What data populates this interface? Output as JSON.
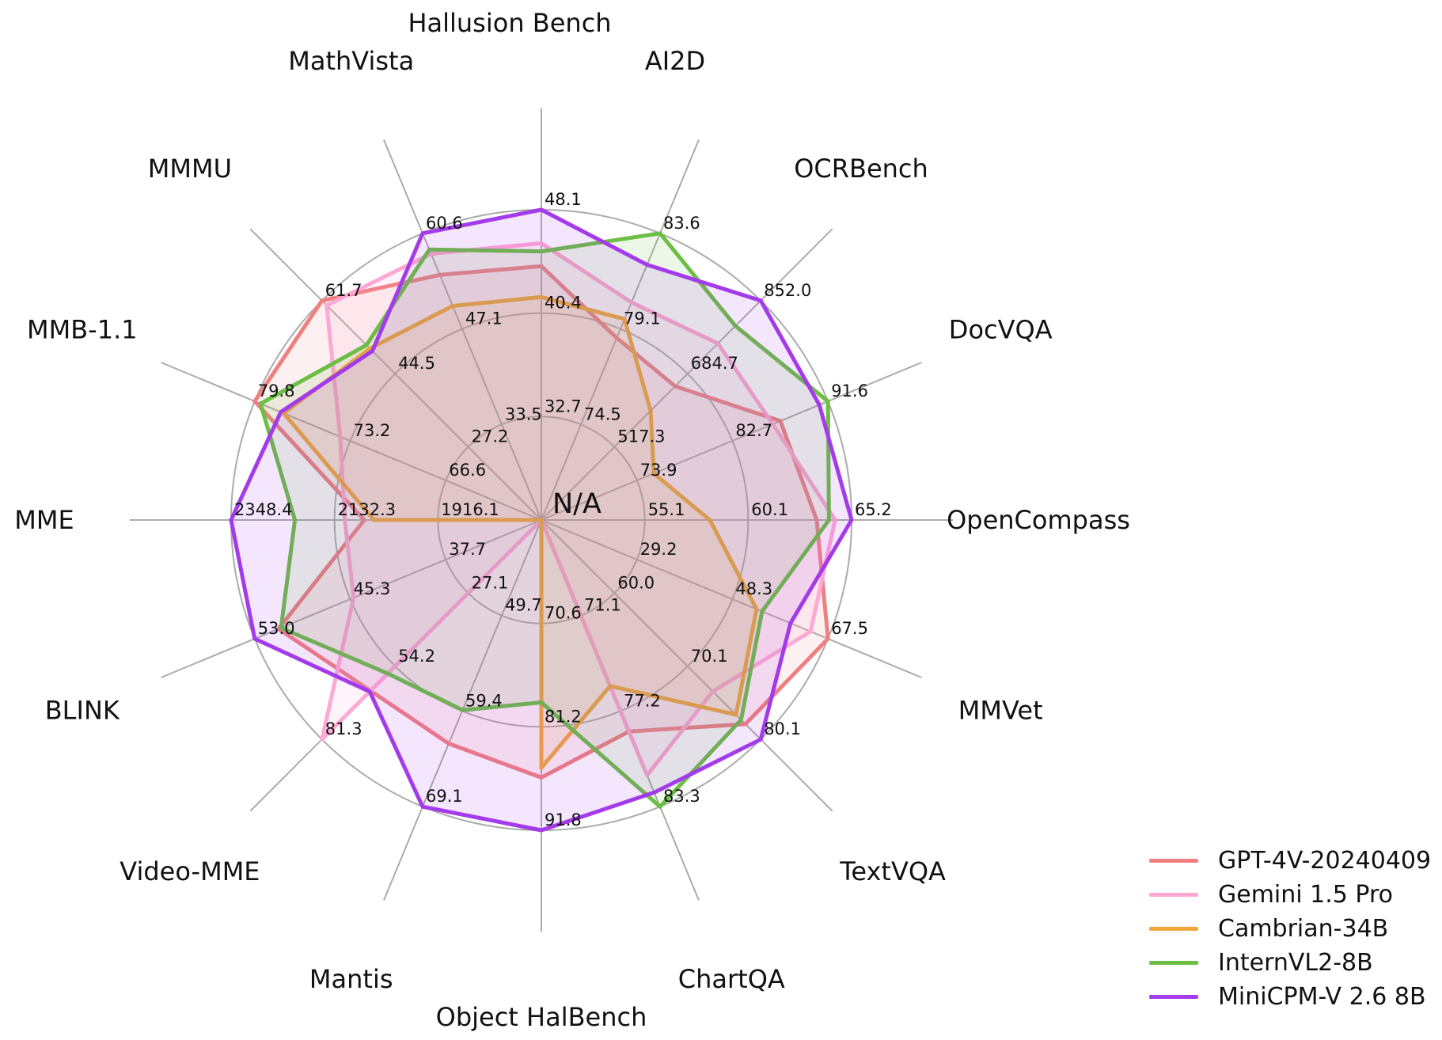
{
  "figure": {
    "background_color": "#ffffff",
    "grid_color": "#ababab",
    "text_color": "#111111"
  },
  "chart_data": {
    "type": "radar",
    "title": "",
    "center_label": "N/A",
    "rings": 3,
    "grid": "on",
    "legend_position": "lower right",
    "axes": [
      {
        "label": "Hallusion Bench",
        "ticks": [
          "32.7",
          "40.4",
          "48.1"
        ]
      },
      {
        "label": "AI2D",
        "ticks": [
          "74.5",
          "79.1",
          "83.6"
        ]
      },
      {
        "label": "OCRBench",
        "ticks": [
          "517.3",
          "684.7",
          "852.0"
        ]
      },
      {
        "label": "DocVQA",
        "ticks": [
          "73.9",
          "82.7",
          "91.6"
        ]
      },
      {
        "label": "OpenCompass",
        "ticks": [
          "55.1",
          "60.1",
          "65.2"
        ]
      },
      {
        "label": "MMVet",
        "ticks": [
          "29.2",
          "48.3",
          "67.5"
        ]
      },
      {
        "label": "TextVQA",
        "ticks": [
          "60.0",
          "70.1",
          "80.1"
        ]
      },
      {
        "label": "ChartQA",
        "ticks": [
          "71.1",
          "77.2",
          "83.3"
        ]
      },
      {
        "label": "Object HalBench",
        "ticks": [
          "70.6",
          "81.2",
          "91.8"
        ]
      },
      {
        "label": "Mantis",
        "ticks": [
          "49.7",
          "59.4",
          "69.1"
        ]
      },
      {
        "label": "Video-MME",
        "ticks": [
          "27.1",
          "54.2",
          "81.3"
        ]
      },
      {
        "label": "BLINK",
        "ticks": [
          "37.7",
          "45.3",
          "53.0"
        ]
      },
      {
        "label": "MME",
        "ticks": [
          "1916.1",
          "2132.3",
          "2348.4"
        ]
      },
      {
        "label": "MMB-1.1",
        "ticks": [
          "66.6",
          "73.2",
          "79.8"
        ]
      },
      {
        "label": "MMMU",
        "ticks": [
          "27.2",
          "44.5",
          "61.7"
        ]
      },
      {
        "label": "MathVista",
        "ticks": [
          "33.5",
          "47.1",
          "60.6"
        ]
      }
    ],
    "series": [
      {
        "name": "GPT-4V-20240409",
        "color": "#F08080",
        "values": [
          43.9,
          78.6,
          656.0,
          87.2,
          63.5,
          67.5,
          78.0,
          78.5,
          86.4,
          62.7,
          63.3,
          51.1,
          2070.2,
          79.8,
          61.7,
          54.7
        ]
      },
      {
        "name": "Gemini 1.5 Pro",
        "color": "#FFA8D4",
        "values": [
          45.6,
          80.3,
          754.0,
          86.5,
          64.4,
          64.0,
          73.5,
          81.3,
          null,
          null,
          81.3,
          45.1,
          2110.6,
          73.9,
          60.6,
          57.7
        ]
      },
      {
        "name": "Cambrian-34B",
        "color": "#F2A73D",
        "values": [
          41.6,
          79.5,
          600.0,
          75.5,
          58.3,
          53.2,
          76.7,
          75.6,
          85.4,
          null,
          null,
          null,
          2049.9,
          77.8,
          50.4,
          50.3
        ]
      },
      {
        "name": "InternVL2-8B",
        "color": "#6CBE45",
        "values": [
          45.0,
          83.6,
          794.0,
          91.6,
          64.1,
          54.3,
          77.4,
          83.3,
          78.7,
          59.3,
          56.9,
          50.9,
          2215.1,
          79.4,
          51.2,
          58.3
        ]
      },
      {
        "name": "MiniCPM-V 2.6 8B",
        "color": "#A43BEB",
        "values": [
          48.1,
          82.1,
          852.0,
          90.8,
          65.2,
          60.0,
          80.1,
          82.4,
          91.8,
          69.1,
          63.6,
          53.0,
          2348.4,
          78.0,
          49.8,
          60.6
        ]
      }
    ]
  }
}
